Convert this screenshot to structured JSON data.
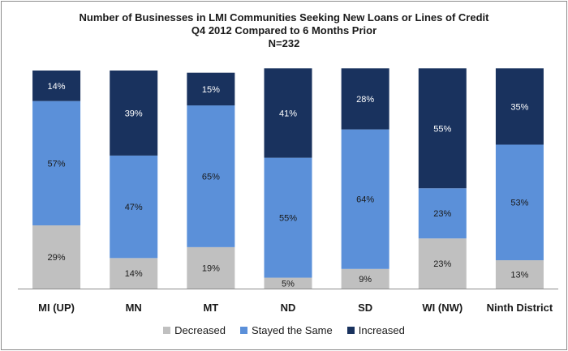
{
  "chart_data": {
    "type": "bar",
    "stacked": true,
    "title": "Number of Businesses  in LMI Communities Seeking New Loans or Lines of Credit",
    "subtitle": "Q4 2012 Compared to 6 Months Prior",
    "note": "N=232",
    "categories": [
      "MI (UP)",
      "MN",
      "MT",
      "ND",
      "SD",
      "WI (NW)",
      "Ninth District"
    ],
    "series": [
      {
        "name": "Decreased",
        "color": "#c0c0c0",
        "values": [
          29,
          14,
          19,
          5,
          9,
          23,
          13
        ],
        "labels": [
          "29%",
          "14%",
          "19%",
          "5%",
          "9%",
          "23%",
          "13%"
        ]
      },
      {
        "name": "Stayed the Same",
        "color": "#5b90d9",
        "values": [
          57,
          47,
          65,
          55,
          64,
          23,
          53
        ],
        "labels": [
          "57%",
          "47%",
          "65%",
          "55%",
          "64%",
          "23%",
          "53%"
        ]
      },
      {
        "name": "Increased",
        "color": "#19325e",
        "values": [
          14,
          39,
          15,
          41,
          28,
          55,
          35
        ],
        "labels": [
          "14%",
          "39%",
          "15%",
          "41%",
          "28%",
          "55%",
          "35%"
        ]
      }
    ],
    "ylim": [
      0,
      100
    ],
    "grid": false,
    "legend": "bottom"
  }
}
